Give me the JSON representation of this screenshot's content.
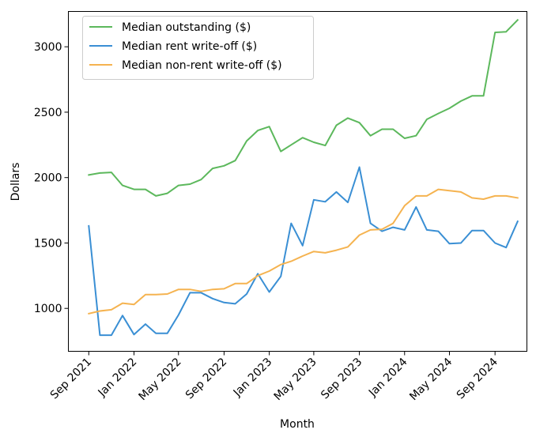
{
  "chart_data": {
    "type": "line",
    "xlabel": "Month",
    "ylabel": "Dollars",
    "xlim": [
      "2021-07-08",
      "2024-11-26"
    ],
    "ylim": [
      672,
      3270
    ],
    "x_ticks": [
      {
        "date": "2021-09-01",
        "label": "Sep 2021"
      },
      {
        "date": "2022-01-01",
        "label": "Jan 2022"
      },
      {
        "date": "2022-05-01",
        "label": "May 2022"
      },
      {
        "date": "2022-09-01",
        "label": "Sep 2022"
      },
      {
        "date": "2023-01-01",
        "label": "Jan 2023"
      },
      {
        "date": "2023-05-01",
        "label": "May 2023"
      },
      {
        "date": "2023-09-01",
        "label": "Sep 2023"
      },
      {
        "date": "2024-01-01",
        "label": "Jan 2024"
      },
      {
        "date": "2024-05-01",
        "label": "May 2024"
      },
      {
        "date": "2024-09-01",
        "label": "Sep 2024"
      }
    ],
    "y_ticks": [
      1000,
      1500,
      2000,
      2500,
      3000
    ],
    "grid": false,
    "legend_position": "top-left",
    "x": [
      "2021-09-01",
      "2021-10-01",
      "2021-11-01",
      "2021-12-01",
      "2022-01-01",
      "2022-02-01",
      "2022-03-01",
      "2022-04-01",
      "2022-05-01",
      "2022-06-01",
      "2022-07-01",
      "2022-08-01",
      "2022-09-01",
      "2022-10-01",
      "2022-11-01",
      "2022-12-01",
      "2023-01-01",
      "2023-02-01",
      "2023-03-01",
      "2023-04-01",
      "2023-05-01",
      "2023-06-01",
      "2023-07-01",
      "2023-08-01",
      "2023-09-01",
      "2023-10-01",
      "2023-11-01",
      "2023-12-01",
      "2024-01-01",
      "2024-02-01",
      "2024-03-01",
      "2024-04-01",
      "2024-05-01",
      "2024-06-01",
      "2024-07-01",
      "2024-08-01",
      "2024-09-01",
      "2024-10-01",
      "2024-11-01"
    ],
    "series": [
      {
        "name": "Median outstanding ($)",
        "color": "#5cb85c",
        "values": [
          2020,
          2035,
          2040,
          1940,
          1910,
          1910,
          1860,
          1880,
          1940,
          1950,
          1985,
          2070,
          2090,
          2130,
          2280,
          2360,
          2390,
          2200,
          2250,
          2305,
          2270,
          2245,
          2400,
          2455,
          2420,
          2320,
          2370,
          2370,
          2300,
          2320,
          2445,
          2490,
          2530,
          2585,
          2625,
          2625,
          3110,
          3115,
          3205
        ]
      },
      {
        "name": "Median rent write-off ($)",
        "color": "#3a8fd4",
        "values": [
          1630,
          795,
          795,
          945,
          800,
          880,
          810,
          810,
          950,
          1120,
          1120,
          1075,
          1045,
          1035,
          1110,
          1265,
          1125,
          1245,
          1650,
          1480,
          1830,
          1815,
          1890,
          1810,
          2080,
          1650,
          1590,
          1620,
          1600,
          1775,
          1600,
          1590,
          1495,
          1500,
          1595,
          1595,
          1500,
          1465,
          1665
        ]
      },
      {
        "name": "Median non-rent write-off ($)",
        "color": "#f5b350",
        "values": [
          960,
          980,
          990,
          1040,
          1030,
          1105,
          1105,
          1110,
          1145,
          1145,
          1130,
          1145,
          1150,
          1190,
          1190,
          1250,
          1285,
          1335,
          1360,
          1400,
          1435,
          1425,
          1445,
          1470,
          1560,
          1600,
          1605,
          1650,
          1785,
          1860,
          1860,
          1910,
          1900,
          1890,
          1845,
          1835,
          1860,
          1860,
          1845
        ]
      }
    ]
  }
}
